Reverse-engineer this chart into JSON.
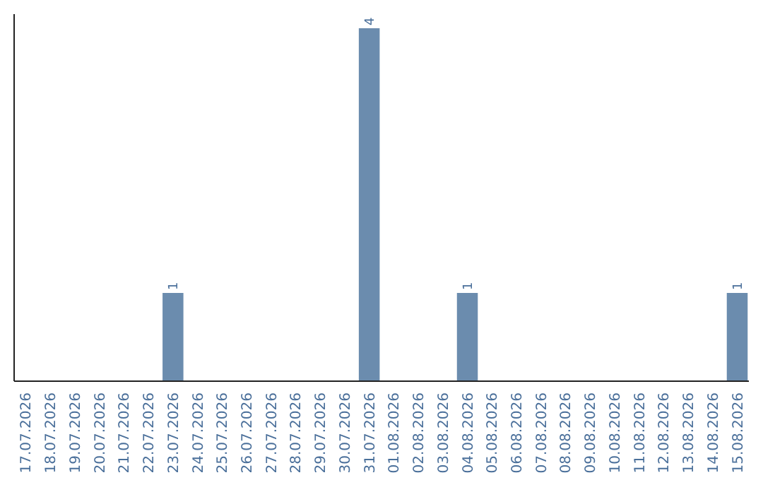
{
  "chart_data": {
    "type": "bar",
    "categories": [
      "17.07.2026",
      "18.07.2026",
      "19.07.2026",
      "20.07.2026",
      "21.07.2026",
      "22.07.2026",
      "23.07.2026",
      "24.07.2026",
      "25.07.2026",
      "26.07.2026",
      "27.07.2026",
      "28.07.2026",
      "29.07.2026",
      "30.07.2026",
      "31.07.2026",
      "01.08.2026",
      "02.08.2026",
      "03.08.2026",
      "04.08.2026",
      "05.08.2026",
      "06.08.2026",
      "07.08.2026",
      "08.08.2026",
      "09.08.2026",
      "10.08.2026",
      "11.08.2026",
      "12.08.2026",
      "13.08.2026",
      "14.08.2026",
      "15.08.2026"
    ],
    "values": [
      0,
      0,
      0,
      0,
      0,
      0,
      1,
      0,
      0,
      0,
      0,
      0,
      0,
      0,
      4,
      0,
      0,
      0,
      1,
      0,
      0,
      0,
      0,
      0,
      0,
      0,
      0,
      0,
      0,
      1
    ],
    "value_labels": [
      null,
      null,
      null,
      null,
      null,
      null,
      "1",
      null,
      null,
      null,
      null,
      null,
      null,
      null,
      "4",
      null,
      null,
      null,
      "1",
      null,
      null,
      null,
      null,
      null,
      null,
      null,
      null,
      null,
      null,
      "1"
    ],
    "color": "#6b8cae",
    "tick_labels": "x"
  }
}
